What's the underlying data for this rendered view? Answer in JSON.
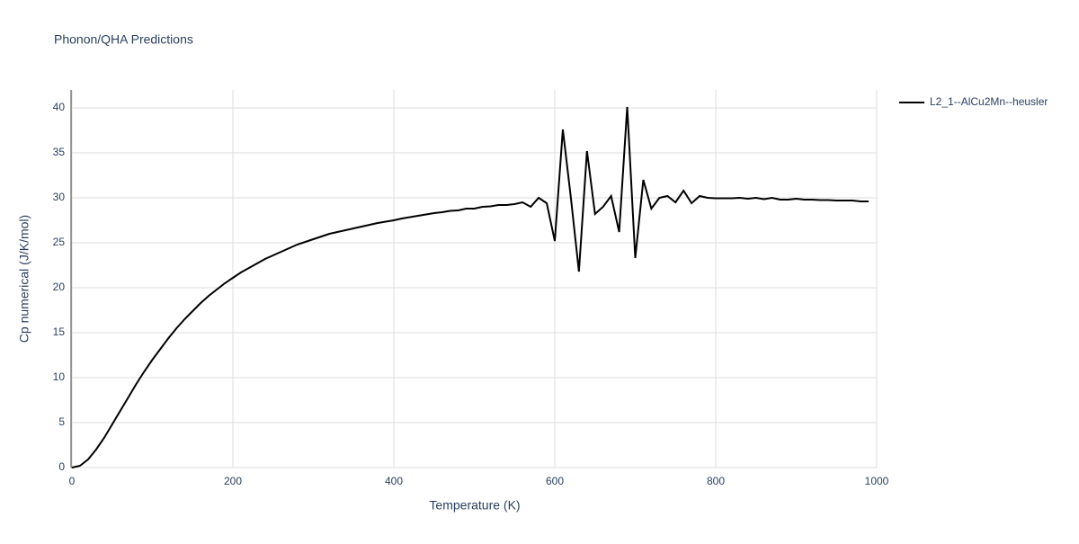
{
  "chart_data": {
    "type": "line",
    "title": "Phonon/QHA Predictions",
    "x_label": "Temperature (K)",
    "y_label": "Cp numerical (J/K/mol)",
    "x": [
      0,
      10,
      20,
      30,
      40,
      50,
      60,
      70,
      80,
      90,
      100,
      110,
      120,
      130,
      140,
      150,
      160,
      170,
      180,
      190,
      200,
      210,
      220,
      230,
      240,
      250,
      260,
      270,
      280,
      290,
      300,
      310,
      320,
      330,
      340,
      350,
      360,
      370,
      380,
      390,
      400,
      410,
      420,
      430,
      440,
      450,
      460,
      470,
      480,
      490,
      500,
      510,
      520,
      530,
      540,
      550,
      560,
      570,
      580,
      590,
      600,
      610,
      620,
      630,
      640,
      650,
      660,
      670,
      680,
      690,
      700,
      710,
      720,
      730,
      740,
      750,
      760,
      770,
      780,
      790,
      800,
      810,
      820,
      830,
      840,
      850,
      860,
      870,
      880,
      890,
      900,
      910,
      920,
      930,
      940,
      950,
      960,
      970,
      980,
      990
    ],
    "series": [
      {
        "name": "L2_1--AlCu2Mn--heusler",
        "color": "#000000",
        "values": [
          0,
          0.2,
          0.9,
          2.0,
          3.3,
          4.8,
          6.3,
          7.8,
          9.3,
          10.7,
          12.0,
          13.2,
          14.4,
          15.5,
          16.5,
          17.4,
          18.3,
          19.1,
          19.8,
          20.5,
          21.1,
          21.7,
          22.2,
          22.7,
          23.2,
          23.6,
          24.0,
          24.4,
          24.8,
          25.1,
          25.4,
          25.7,
          26.0,
          26.2,
          26.4,
          26.6,
          26.8,
          27.0,
          27.2,
          27.35,
          27.5,
          27.7,
          27.85,
          28.0,
          28.15,
          28.3,
          28.4,
          28.55,
          28.6,
          28.8,
          28.8,
          29.0,
          29.05,
          29.2,
          29.2,
          29.3,
          29.5,
          29.0,
          30.0,
          29.4,
          25.2,
          37.6,
          30.0,
          21.8,
          35.2,
          28.2,
          29.0,
          30.2,
          26.2,
          40.1,
          23.3,
          32.0,
          28.8,
          30.0,
          30.2,
          29.5,
          30.8,
          29.4,
          30.2,
          30.0,
          29.95,
          29.95,
          29.95,
          30.0,
          29.9,
          30.0,
          29.85,
          30.0,
          29.8,
          29.8,
          29.9,
          29.8,
          29.8,
          29.75,
          29.75,
          29.7,
          29.7,
          29.7,
          29.6,
          29.6
        ]
      }
    ],
    "xlim": [
      0,
      1000
    ],
    "ylim": [
      0,
      42
    ],
    "xticks": [
      0,
      200,
      400,
      600,
      800,
      1000
    ],
    "yticks": [
      0,
      5,
      10,
      15,
      20,
      25,
      30,
      35,
      40
    ],
    "grid": true,
    "legend_position": "right"
  }
}
